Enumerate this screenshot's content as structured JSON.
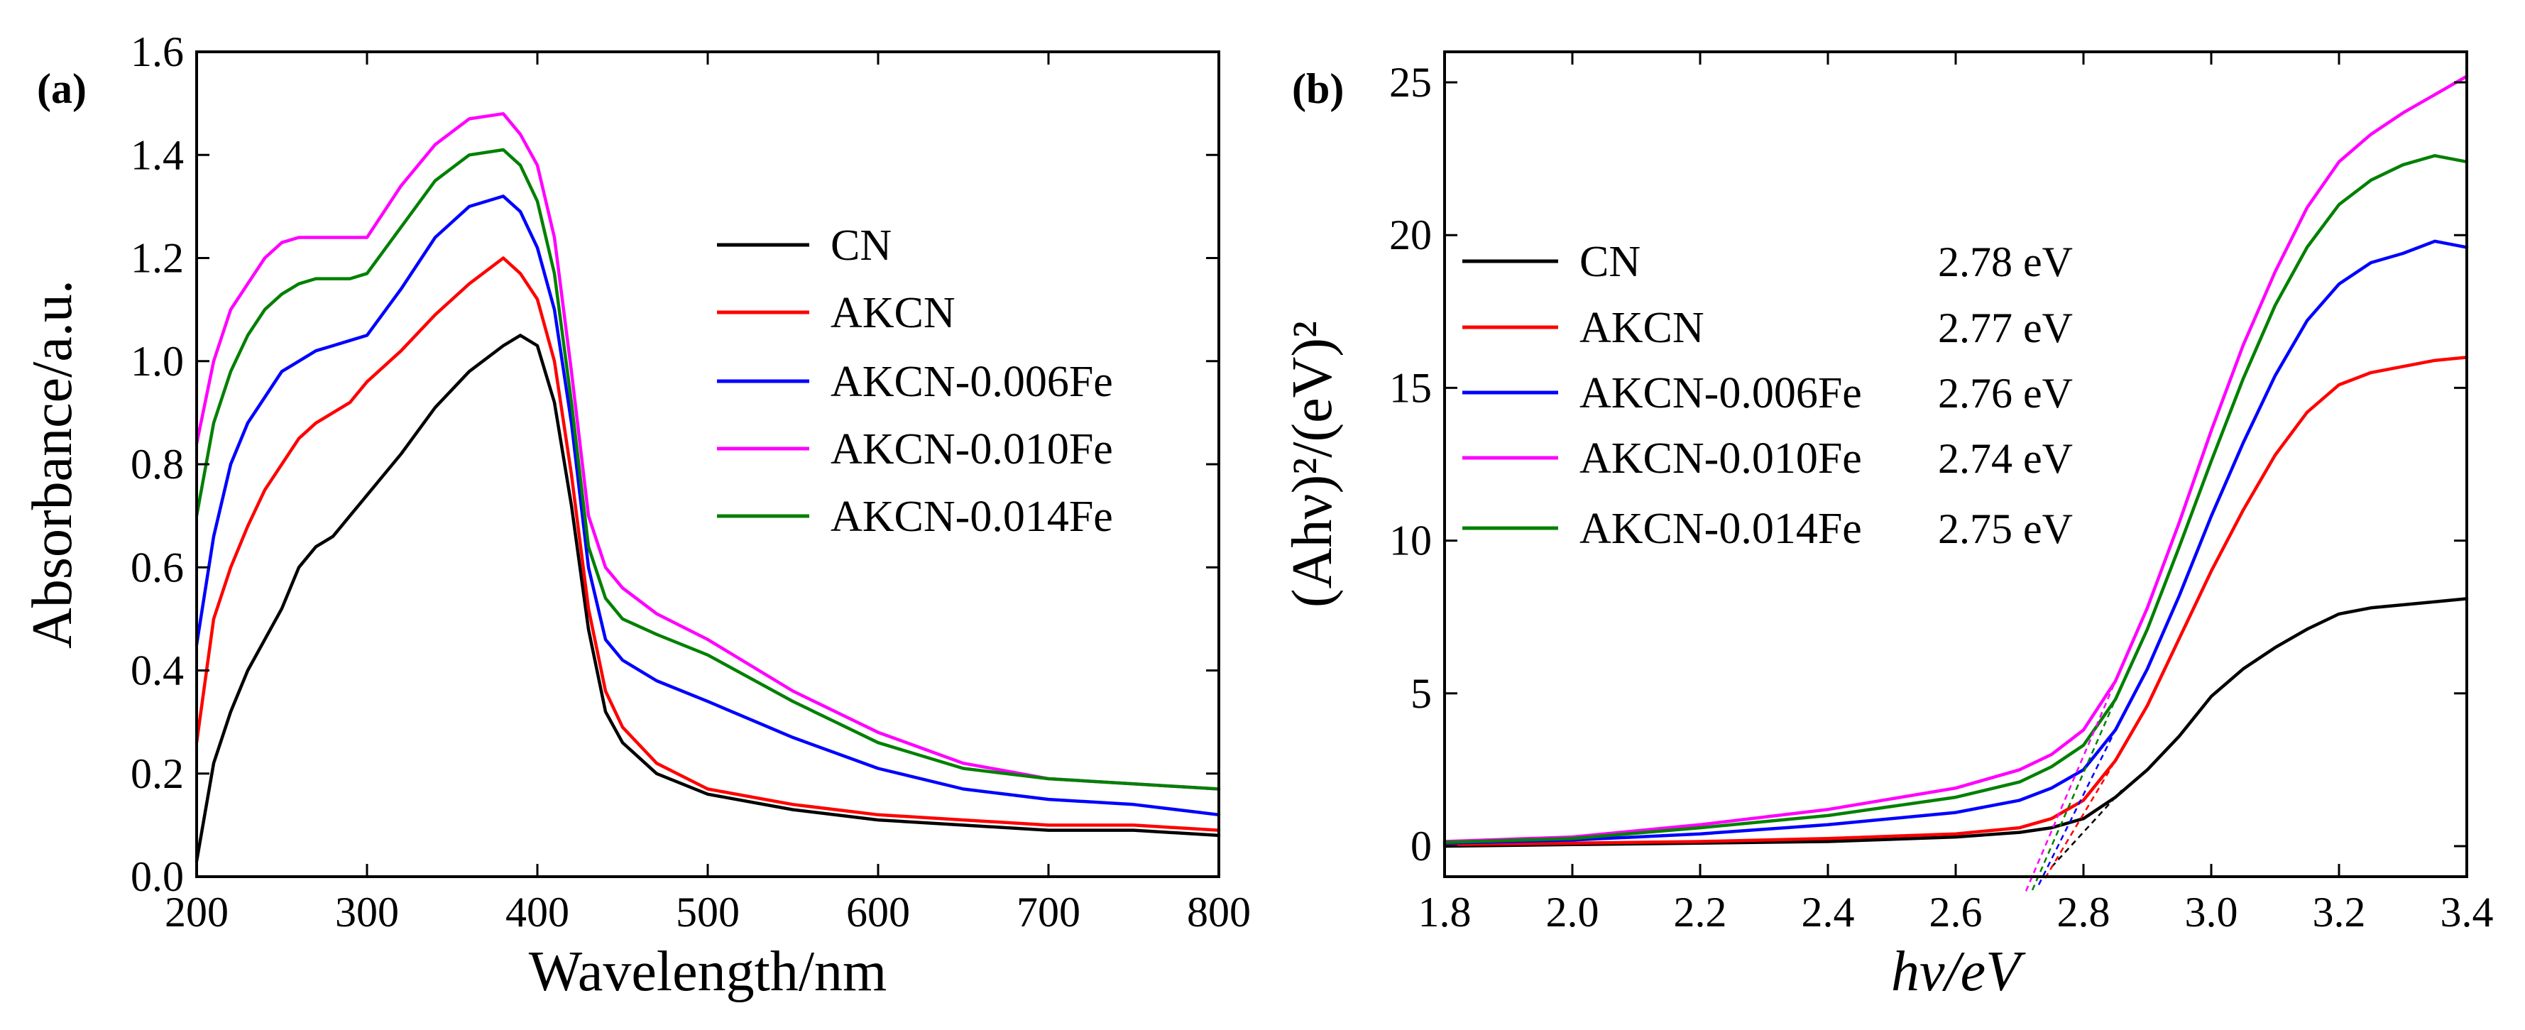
{
  "chart_data": [
    {
      "type": "line",
      "panel_label": "(a)",
      "xlabel": "Wavelength/nm",
      "ylabel": "Absorbance/a.u.",
      "xlim": [
        200,
        800
      ],
      "ylim": [
        0.0,
        1.6
      ],
      "xticks": [
        "200",
        "300",
        "400",
        "500",
        "600",
        "700",
        "800"
      ],
      "yticks": [
        "0.0",
        "0.2",
        "0.4",
        "0.6",
        "0.8",
        "1.0",
        "1.2",
        "1.4",
        "1.6"
      ],
      "legend_position": "center-right",
      "series": [
        {
          "name": "CN",
          "color": "#000000",
          "x": [
            200,
            210,
            220,
            230,
            240,
            250,
            260,
            270,
            280,
            290,
            300,
            320,
            340,
            360,
            380,
            390,
            400,
            410,
            420,
            430,
            440,
            450,
            470,
            500,
            550,
            600,
            650,
            700,
            750,
            800
          ],
          "y": [
            0.03,
            0.22,
            0.32,
            0.4,
            0.46,
            0.52,
            0.6,
            0.64,
            0.66,
            0.7,
            0.74,
            0.82,
            0.91,
            0.98,
            1.03,
            1.05,
            1.03,
            0.92,
            0.72,
            0.48,
            0.32,
            0.26,
            0.2,
            0.16,
            0.13,
            0.11,
            0.1,
            0.09,
            0.09,
            0.08
          ]
        },
        {
          "name": "AKCN",
          "color": "#ff0000",
          "x": [
            200,
            210,
            220,
            230,
            240,
            250,
            260,
            270,
            280,
            290,
            300,
            320,
            340,
            360,
            380,
            390,
            400,
            410,
            420,
            430,
            440,
            450,
            470,
            500,
            550,
            600,
            650,
            700,
            750,
            800
          ],
          "y": [
            0.26,
            0.5,
            0.6,
            0.68,
            0.75,
            0.8,
            0.85,
            0.88,
            0.9,
            0.92,
            0.96,
            1.02,
            1.09,
            1.15,
            1.2,
            1.17,
            1.12,
            1.0,
            0.78,
            0.52,
            0.36,
            0.29,
            0.22,
            0.17,
            0.14,
            0.12,
            0.11,
            0.1,
            0.1,
            0.09
          ]
        },
        {
          "name": "AKCN-0.006Fe",
          "color": "#0000ff",
          "x": [
            200,
            210,
            220,
            230,
            240,
            250,
            260,
            270,
            280,
            290,
            300,
            320,
            340,
            360,
            380,
            390,
            400,
            410,
            420,
            430,
            440,
            450,
            470,
            500,
            550,
            600,
            650,
            700,
            750,
            800
          ],
          "y": [
            0.45,
            0.66,
            0.8,
            0.88,
            0.93,
            0.98,
            1.0,
            1.02,
            1.03,
            1.04,
            1.05,
            1.14,
            1.24,
            1.3,
            1.32,
            1.29,
            1.22,
            1.1,
            0.88,
            0.6,
            0.46,
            0.42,
            0.38,
            0.34,
            0.27,
            0.21,
            0.17,
            0.15,
            0.14,
            0.12
          ]
        },
        {
          "name": "AKCN-0.010Fe",
          "color": "#ff00ff",
          "x": [
            200,
            210,
            220,
            230,
            240,
            250,
            260,
            270,
            280,
            290,
            300,
            320,
            340,
            360,
            380,
            390,
            400,
            410,
            420,
            430,
            440,
            450,
            470,
            500,
            550,
            600,
            650,
            700,
            750,
            800
          ],
          "y": [
            0.84,
            1.0,
            1.1,
            1.15,
            1.2,
            1.23,
            1.24,
            1.24,
            1.24,
            1.24,
            1.24,
            1.34,
            1.42,
            1.47,
            1.48,
            1.44,
            1.38,
            1.24,
            0.98,
            0.7,
            0.6,
            0.56,
            0.51,
            0.46,
            0.36,
            0.28,
            0.22,
            0.19,
            0.18,
            0.17
          ]
        },
        {
          "name": "AKCN-0.014Fe",
          "color": "#008000",
          "x": [
            200,
            210,
            220,
            230,
            240,
            250,
            260,
            270,
            280,
            290,
            300,
            320,
            340,
            360,
            380,
            390,
            400,
            410,
            420,
            430,
            440,
            450,
            470,
            500,
            550,
            600,
            650,
            700,
            750,
            800
          ],
          "y": [
            0.7,
            0.88,
            0.98,
            1.05,
            1.1,
            1.13,
            1.15,
            1.16,
            1.16,
            1.16,
            1.17,
            1.26,
            1.35,
            1.4,
            1.41,
            1.38,
            1.31,
            1.17,
            0.92,
            0.64,
            0.54,
            0.5,
            0.47,
            0.43,
            0.34,
            0.26,
            0.21,
            0.19,
            0.18,
            0.17
          ]
        }
      ]
    },
    {
      "type": "line",
      "panel_label": "(b)",
      "xlabel": "hν/eV",
      "ylabel": "(Ahν)²/(eV)²",
      "xlim": [
        1.8,
        3.4
      ],
      "ylim": [
        -1,
        26
      ],
      "xticks": [
        "1.8",
        "2.0",
        "2.2",
        "2.4",
        "2.6",
        "2.8",
        "3.0",
        "3.2",
        "3.4"
      ],
      "yticks": [
        "0",
        "5",
        "10",
        "15",
        "20",
        "25"
      ],
      "legend_position": "upper-left",
      "series": [
        {
          "name": "CN",
          "band_gap": "2.78  eV",
          "color": "#000000",
          "x": [
            1.8,
            2.0,
            2.2,
            2.4,
            2.6,
            2.7,
            2.75,
            2.8,
            2.85,
            2.9,
            2.95,
            3.0,
            3.05,
            3.1,
            3.15,
            3.2,
            3.25,
            3.3,
            3.35,
            3.4
          ],
          "y": [
            0.0,
            0.05,
            0.1,
            0.15,
            0.3,
            0.45,
            0.6,
            0.9,
            1.6,
            2.5,
            3.6,
            4.9,
            5.8,
            6.5,
            7.1,
            7.6,
            7.8,
            7.9,
            8.0,
            8.1
          ]
        },
        {
          "name": "AKCN",
          "band_gap": "2.77  eV",
          "color": "#ff0000",
          "x": [
            1.8,
            2.0,
            2.2,
            2.4,
            2.6,
            2.7,
            2.75,
            2.8,
            2.85,
            2.9,
            2.95,
            3.0,
            3.05,
            3.1,
            3.15,
            3.2,
            3.25,
            3.3,
            3.35,
            3.4
          ],
          "y": [
            0.05,
            0.1,
            0.15,
            0.25,
            0.4,
            0.6,
            0.9,
            1.5,
            2.8,
            4.6,
            6.8,
            9.0,
            11.0,
            12.8,
            14.2,
            15.1,
            15.5,
            15.7,
            15.9,
            16.0
          ]
        },
        {
          "name": "AKCN-0.006Fe",
          "band_gap": "2.76  eV",
          "color": "#0000ff",
          "x": [
            1.8,
            2.0,
            2.2,
            2.4,
            2.6,
            2.7,
            2.75,
            2.8,
            2.85,
            2.9,
            2.95,
            3.0,
            3.05,
            3.1,
            3.15,
            3.2,
            3.25,
            3.3,
            3.35,
            3.4
          ],
          "y": [
            0.1,
            0.2,
            0.4,
            0.7,
            1.1,
            1.5,
            1.9,
            2.5,
            3.8,
            5.8,
            8.2,
            10.8,
            13.2,
            15.4,
            17.2,
            18.4,
            19.1,
            19.4,
            19.8,
            19.6
          ]
        },
        {
          "name": "AKCN-0.010Fe",
          "band_gap": "2.74  eV",
          "color": "#ff00ff",
          "x": [
            1.8,
            2.0,
            2.2,
            2.4,
            2.6,
            2.7,
            2.75,
            2.8,
            2.85,
            2.9,
            2.95,
            3.0,
            3.05,
            3.1,
            3.15,
            3.2,
            3.25,
            3.3,
            3.35,
            3.4
          ],
          "y": [
            0.15,
            0.3,
            0.7,
            1.2,
            1.9,
            2.5,
            3.0,
            3.8,
            5.4,
            7.8,
            10.6,
            13.6,
            16.4,
            18.8,
            20.9,
            22.4,
            23.3,
            24.0,
            24.6,
            25.2
          ]
        },
        {
          "name": "AKCN-0.014Fe",
          "band_gap": "2.75  eV",
          "color": "#008000",
          "x": [
            1.8,
            2.0,
            2.2,
            2.4,
            2.6,
            2.7,
            2.75,
            2.8,
            2.85,
            2.9,
            2.95,
            3.0,
            3.05,
            3.1,
            3.15,
            3.2,
            3.25,
            3.3,
            3.35,
            3.4
          ],
          "y": [
            0.12,
            0.25,
            0.6,
            1.0,
            1.6,
            2.1,
            2.6,
            3.3,
            4.8,
            7.1,
            9.8,
            12.6,
            15.3,
            17.7,
            19.6,
            21.0,
            21.8,
            22.3,
            22.6,
            22.4
          ]
        }
      ]
    }
  ]
}
